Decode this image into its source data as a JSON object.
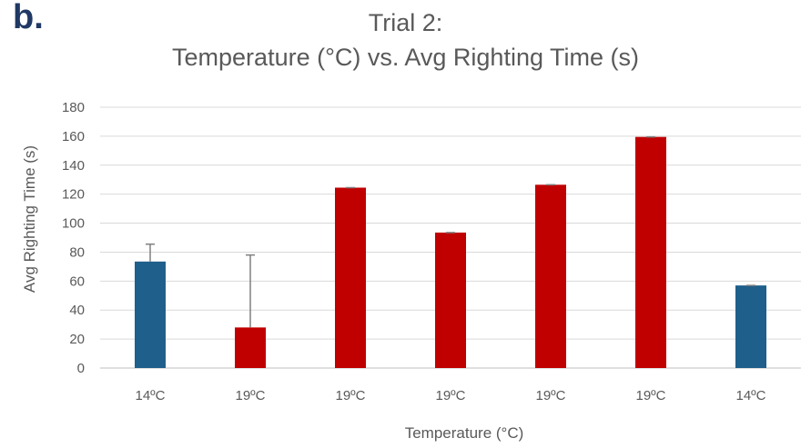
{
  "panel_label": "b.",
  "chart_data": {
    "type": "bar",
    "title": "Trial 2:",
    "subtitle": "Temperature (°C) vs. Avg Righting Time (s)",
    "xlabel": "Temperature (°C)",
    "ylabel": "Avg Righting Time (s)",
    "ylim": [
      0,
      180
    ],
    "yticks": [
      0,
      20,
      40,
      60,
      80,
      100,
      120,
      140,
      160,
      180
    ],
    "grid": true,
    "legend": "none",
    "categories": [
      "14ºC",
      "19ºC",
      "19ºC",
      "19ºC",
      "19ºC",
      "19ºC",
      "14ºC"
    ],
    "values": [
      73.5,
      28,
      124.5,
      93.5,
      126.5,
      159.5,
      57
    ],
    "error_plus": [
      12,
      50,
      0,
      0,
      0,
      0,
      0
    ],
    "bar_colors": [
      "#1f5f8b",
      "#c00000",
      "#c00000",
      "#c00000",
      "#c00000",
      "#c00000",
      "#1f5f8b"
    ]
  }
}
